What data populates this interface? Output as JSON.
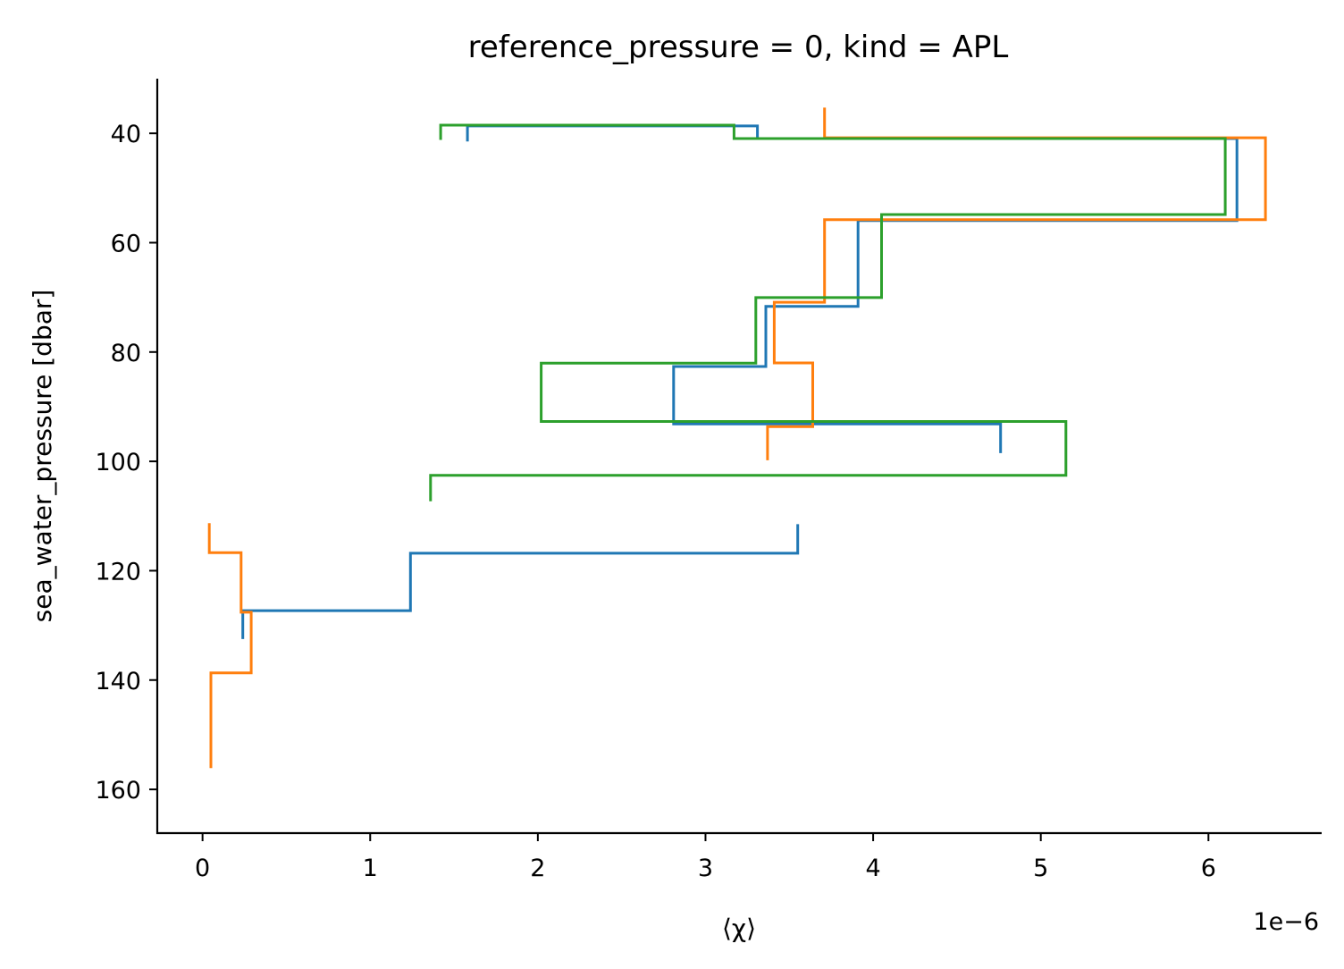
{
  "chart_data": {
    "type": "line",
    "title": "reference_pressure = 0, kind = APL",
    "xlabel": "⟨χ⟩",
    "ylabel": "sea_water_pressure [dbar]",
    "x_offset_label": "1e−6",
    "x_scale": 1e-06,
    "xlim": [
      -0.27,
      6.67
    ],
    "ylim": [
      168,
      30
    ],
    "y_inverted": true,
    "xticks": [
      0,
      1,
      2,
      3,
      4,
      5,
      6
    ],
    "xtick_labels": [
      "0",
      "1",
      "2",
      "3",
      "4",
      "5",
      "6"
    ],
    "yticks": [
      40,
      60,
      80,
      100,
      120,
      140,
      160
    ],
    "ytick_labels": [
      "40",
      "60",
      "80",
      "100",
      "120",
      "140",
      "160"
    ],
    "grid": false,
    "legend": "none",
    "drawstyle": "steps-mid",
    "series": [
      {
        "color": "#1f77b4",
        "x": [
          1.58,
          3.31,
          6.17,
          3.91,
          3.36,
          2.81,
          4.76
        ],
        "y": [
          41.5,
          35.8,
          46.1,
          65.8,
          77.5,
          87.8,
          98.5
        ]
      },
      {
        "color": "#ff7f0e",
        "x": [
          3.71,
          6.34,
          3.71,
          3.41,
          3.64,
          3.37
        ],
        "y": [
          35.3,
          46.3,
          65.3,
          76.5,
          87.5,
          99.8
        ]
      },
      {
        "color": "#2ca02c",
        "x": [
          1.42,
          3.17,
          6.1,
          4.05,
          3.3,
          2.02,
          5.15,
          1.36
        ],
        "y": [
          41.2,
          35.8,
          46.1,
          63.6,
          76.5,
          87.6,
          97.8,
          107.3
        ]
      },
      {
        "color": "#1f77b4",
        "x": [
          3.55,
          1.24,
          0.24
        ],
        "y": [
          111.5,
          122.1,
          132.5
        ]
      },
      {
        "color": "#ff7f0e",
        "x": [
          0.04,
          0.23,
          0.29,
          0.05,
          0.05
        ],
        "y": [
          111.3,
          122.1,
          133.1,
          144.3,
          156.1
        ]
      }
    ]
  }
}
